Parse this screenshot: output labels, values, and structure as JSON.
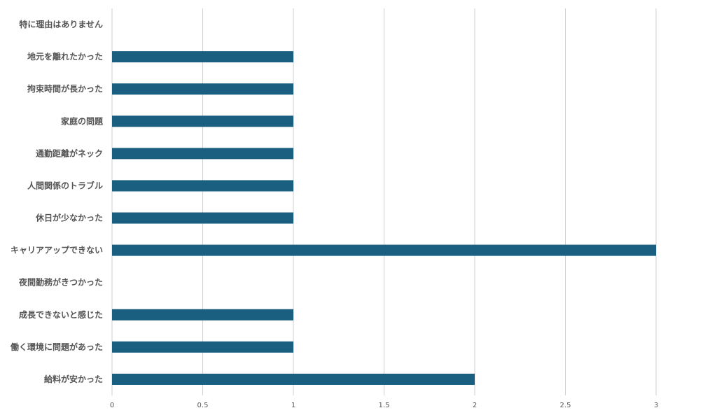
{
  "chart_data": {
    "type": "bar",
    "orientation": "horizontal",
    "categories": [
      "特に理由はありません",
      "地元を離れたかった",
      "拘束時間が長かった",
      "家庭の問題",
      "通勤距離がネック",
      "人間関係のトラブル",
      "休日が少なかった",
      "キャリアアップできない",
      "夜間勤務がきつかった",
      "成長できないと感じた",
      "働く環境に問題があった",
      "給料が安かった"
    ],
    "values": [
      0,
      1,
      1,
      1,
      1,
      1,
      1,
      3,
      0,
      1,
      1,
      2
    ],
    "xlim": [
      0,
      3
    ],
    "xticks": [
      "0",
      "0.5",
      "1",
      "1.5",
      "2",
      "2.5",
      "3"
    ],
    "title": "",
    "xlabel": "",
    "ylabel": "",
    "grid": "vertical",
    "legend": "none",
    "bar_color": "#1a5e80",
    "grid_color": "#cfcfcf",
    "label_color": "#555555"
  }
}
